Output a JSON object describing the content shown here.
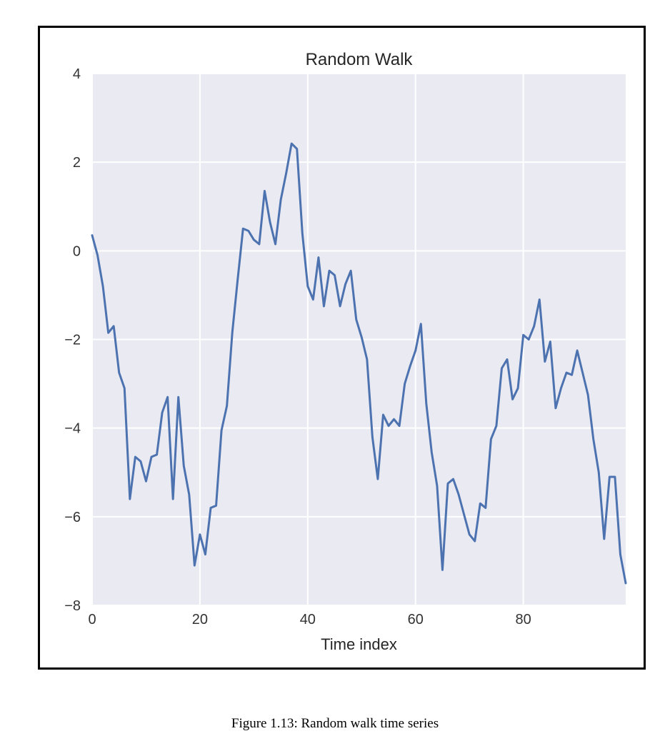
{
  "chart_data": {
    "type": "line",
    "title": "Random Walk",
    "xlabel": "Time index",
    "ylabel": "",
    "xlim": [
      0,
      99
    ],
    "ylim": [
      -8,
      4
    ],
    "xticks": [
      0,
      20,
      40,
      60,
      80
    ],
    "yticks": [
      4,
      2,
      0,
      -2,
      -4,
      -6,
      -8
    ],
    "xtick_labels": [
      "0",
      "20",
      "40",
      "60",
      "80"
    ],
    "ytick_labels": [
      "4",
      "2",
      "0",
      "−2",
      "−4",
      "−6",
      "−8"
    ],
    "grid": true,
    "background_color": "#eaeaf2",
    "grid_color": "#ffffff",
    "series": [
      {
        "name": "random walk",
        "color": "#4c72b0",
        "x": [
          0,
          1,
          2,
          3,
          4,
          5,
          6,
          7,
          8,
          9,
          10,
          11,
          12,
          13,
          14,
          15,
          16,
          17,
          18,
          19,
          20,
          21,
          22,
          23,
          24,
          25,
          26,
          27,
          28,
          29,
          30,
          31,
          32,
          33,
          34,
          35,
          36,
          37,
          38,
          39,
          40,
          41,
          42,
          43,
          44,
          45,
          46,
          47,
          48,
          49,
          50,
          51,
          52,
          53,
          54,
          55,
          56,
          57,
          58,
          59,
          60,
          61,
          62,
          63,
          64,
          65,
          66,
          67,
          68,
          69,
          70,
          71,
          72,
          73,
          74,
          75,
          76,
          77,
          78,
          79,
          80,
          81,
          82,
          83,
          84,
          85,
          86,
          87,
          88,
          89,
          90,
          91,
          92,
          93,
          94,
          95,
          96,
          97,
          98,
          99
        ],
        "values": [
          0.35,
          -0.1,
          -0.8,
          -1.85,
          -1.7,
          -2.75,
          -3.1,
          -5.6,
          -4.65,
          -4.75,
          -5.2,
          -4.65,
          -4.6,
          -3.65,
          -3.3,
          -5.6,
          -3.3,
          -4.85,
          -5.5,
          -7.1,
          -6.4,
          -6.85,
          -5.8,
          -5.75,
          -4.05,
          -3.5,
          -1.85,
          -0.65,
          0.5,
          0.45,
          0.25,
          0.15,
          1.35,
          0.65,
          0.15,
          1.15,
          1.75,
          2.42,
          2.3,
          0.4,
          -0.8,
          -1.1,
          -0.15,
          -1.25,
          -0.45,
          -0.55,
          -1.25,
          -0.75,
          -0.45,
          -1.55,
          -1.95,
          -2.45,
          -4.2,
          -5.15,
          -3.7,
          -3.95,
          -3.8,
          -3.95,
          -3.0,
          -2.6,
          -2.25,
          -1.65,
          -3.45,
          -4.55,
          -5.3,
          -7.2,
          -5.25,
          -5.15,
          -5.5,
          -5.95,
          -6.4,
          -6.55,
          -5.7,
          -5.8,
          -4.25,
          -3.95,
          -2.65,
          -2.45,
          -3.35,
          -3.1,
          -1.9,
          -2.0,
          -1.7,
          -1.1,
          -2.5,
          -2.05,
          -3.55,
          -3.1,
          -2.75,
          -2.8,
          -2.25,
          -2.75,
          -3.25,
          -4.25,
          -5.0,
          -6.5,
          -5.1,
          -5.1,
          -6.85,
          -7.5
        ]
      }
    ]
  },
  "caption": "Figure 1.13: Random walk time series"
}
